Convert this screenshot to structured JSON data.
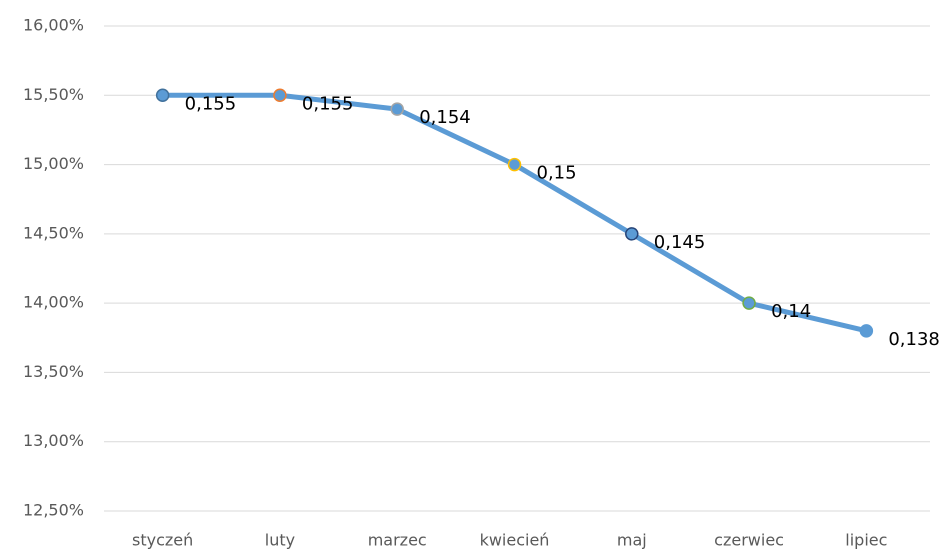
{
  "chart_data": {
    "type": "line",
    "categories": [
      "styczeń",
      "luty",
      "marzec",
      "kwiecień",
      "maj",
      "czerwiec",
      "lipiec"
    ],
    "series": [
      {
        "color": "#5b9bd5",
        "values": [
          15.5,
          15.5,
          15.4,
          15.0,
          14.5,
          14.0,
          13.8
        ],
        "value_labels": [
          "0,155",
          "0,155",
          "0,154",
          "0,15",
          "0,145",
          "0,14",
          "0,138"
        ],
        "marker_edge_colors": [
          "#41719c",
          "#ed7d31",
          "#a5a5a5",
          "#ffc000",
          "#264478",
          "#70ad47",
          "#5b9bd5"
        ]
      }
    ],
    "ylim": [
      12.5,
      16.0
    ],
    "yticks": [
      {
        "value": 12.5,
        "label": "12,50%"
      },
      {
        "value": 13.0,
        "label": "13,00%"
      },
      {
        "value": 13.5,
        "label": "13,50%"
      },
      {
        "value": 14.0,
        "label": "14,00%"
      },
      {
        "value": 14.5,
        "label": "14,50%"
      },
      {
        "value": 15.0,
        "label": "15,00%"
      },
      {
        "value": 15.5,
        "label": "15,50%"
      },
      {
        "value": 16.0,
        "label": "16,00%"
      }
    ],
    "grid": true
  }
}
